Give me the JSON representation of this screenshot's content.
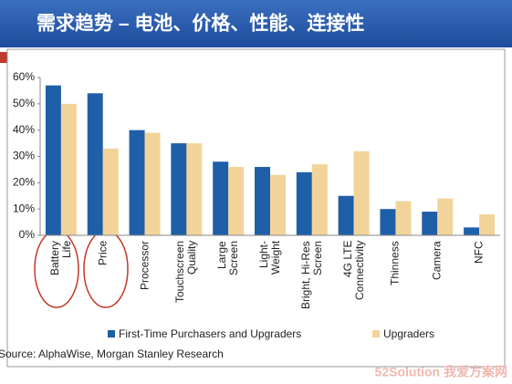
{
  "title": "需求趋势 – 电池、价格、性能、连接性",
  "chart_data": {
    "type": "bar",
    "categories": [
      "Battery\nLife",
      "Price",
      "Processor",
      "Touchscreen\nQuality",
      "Large\nScreen",
      "Light-\nWeight",
      "Bright, Hi-Res\nScreen",
      "4G LTE\nConnectivity",
      "Thinness",
      "Camera",
      "NFC"
    ],
    "series": [
      {
        "name": "First-Time Purchasers and Upgraders",
        "color": "#1f5fa8",
        "values": [
          57,
          54,
          40,
          35,
          28,
          26,
          24,
          15,
          10,
          9,
          3
        ]
      },
      {
        "name": "Upgraders",
        "color": "#f2d49a",
        "values": [
          50,
          33,
          39,
          35,
          26,
          23,
          27,
          32,
          13,
          14,
          8
        ]
      }
    ],
    "ylim": [
      0,
      60
    ],
    "yticks": [
      {
        "value": 0,
        "label": "0%"
      },
      {
        "value": 10,
        "label": "10%"
      },
      {
        "value": 20,
        "label": "20%"
      },
      {
        "value": 30,
        "label": "30%"
      },
      {
        "value": 40,
        "label": "40%"
      },
      {
        "value": 50,
        "label": "50%"
      },
      {
        "value": 60,
        "label": "60%"
      }
    ],
    "legend": "bottom",
    "source": "Source: AlphaWise, Morgan Stanley Research"
  },
  "watermark": "52Solution 我爱方案网"
}
